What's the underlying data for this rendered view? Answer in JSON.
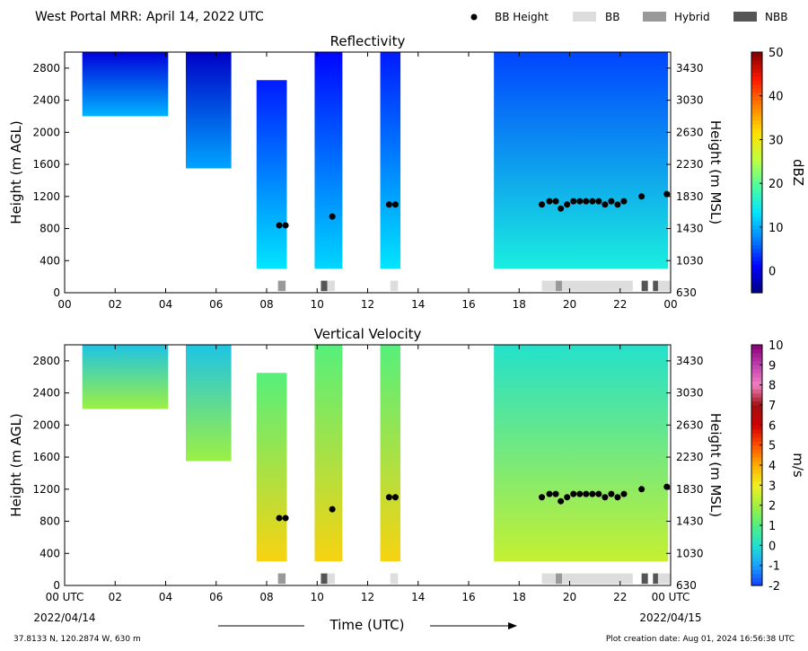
{
  "header": {
    "title": "West Portal MRR:  April 14, 2022 UTC",
    "legend": [
      {
        "label": "BB Height",
        "kind": "dot",
        "color": "#000000"
      },
      {
        "label": "BB",
        "kind": "box",
        "color": "#dddddd"
      },
      {
        "label": "Hybrid",
        "kind": "box",
        "color": "#999999"
      },
      {
        "label": "NBB",
        "kind": "box",
        "color": "#555555"
      }
    ]
  },
  "footer": {
    "location": "37.8133 N, 120.2874 W, 630 m",
    "creation": "Plot creation date: Aug 01, 2024 16:56:38 UTC",
    "xlabel": "Time (UTC)",
    "start_date": "2022/04/14",
    "end_date": "2022/04/15"
  },
  "chart_data": [
    {
      "type": "heatmap",
      "title": "Reflectivity",
      "ylabel": "Height (m AGL)",
      "y2label": "Height (m MSL)",
      "colorbar_label": "dBZ",
      "xlim": [
        0,
        24
      ],
      "ylim": [
        0,
        3000
      ],
      "xticks": [
        "00",
        "02",
        "04",
        "06",
        "08",
        "10",
        "12",
        "14",
        "16",
        "18",
        "20",
        "22",
        "00"
      ],
      "yticks": [
        0,
        400,
        800,
        1200,
        1600,
        2000,
        2400,
        2800
      ],
      "y2ticks": [
        630,
        1030,
        1430,
        1830,
        2230,
        2630,
        3030,
        3430
      ],
      "colorbar_range": [
        -5,
        50
      ],
      "colorbar_ticks": [
        0,
        10,
        20,
        30,
        40,
        50
      ],
      "colorbar_colors": [
        "#00007f",
        "#0000ff",
        "#0080ff",
        "#00e5ff",
        "#4dff9f",
        "#c0ff40",
        "#ffe000",
        "#ff8000",
        "#ff1800",
        "#7f0000"
      ],
      "precip_bands": [
        {
          "start": 0.7,
          "end": 4.1,
          "top": 3000,
          "bottom": 2200,
          "value": 6
        },
        {
          "start": 4.8,
          "end": 6.6,
          "top": 3000,
          "bottom": 1550,
          "value": 5
        },
        {
          "start": 7.6,
          "end": 8.8,
          "top": 2650,
          "bottom": 300,
          "value": 9
        },
        {
          "start": 9.9,
          "end": 11.0,
          "top": 3000,
          "bottom": 300,
          "value": 8
        },
        {
          "start": 12.5,
          "end": 13.3,
          "top": 3000,
          "bottom": 300,
          "value": 9
        },
        {
          "start": 17.0,
          "end": 23.9,
          "top": 3000,
          "bottom": 300,
          "value": 11
        }
      ],
      "bb_height": {
        "x": [
          8.5,
          8.75,
          10.6,
          12.85,
          13.1,
          18.9,
          19.2,
          19.45,
          19.65,
          19.9,
          20.15,
          20.4,
          20.65,
          20.9,
          21.15,
          21.4,
          21.65,
          21.9,
          22.15,
          22.85,
          23.85
        ],
        "y": [
          840,
          840,
          950,
          1100,
          1100,
          1100,
          1140,
          1140,
          1050,
          1100,
          1140,
          1140,
          1140,
          1140,
          1140,
          1100,
          1140,
          1100,
          1140,
          1200,
          1230
        ]
      },
      "bb_type_segments": [
        {
          "start": 8.45,
          "end": 8.75,
          "type": "Hybrid"
        },
        {
          "start": 10.15,
          "end": 10.4,
          "type": "NBB"
        },
        {
          "start": 10.4,
          "end": 10.7,
          "type": "BB"
        },
        {
          "start": 12.9,
          "end": 13.2,
          "type": "BB"
        },
        {
          "start": 18.9,
          "end": 19.45,
          "type": "BB"
        },
        {
          "start": 19.45,
          "end": 19.7,
          "type": "Hybrid"
        },
        {
          "start": 19.7,
          "end": 22.5,
          "type": "BB"
        },
        {
          "start": 22.85,
          "end": 23.1,
          "type": "NBB"
        },
        {
          "start": 23.3,
          "end": 23.5,
          "type": "NBB"
        },
        {
          "start": 23.5,
          "end": 24.0,
          "type": "BB"
        }
      ]
    },
    {
      "type": "heatmap",
      "title": "Vertical Velocity",
      "ylabel": "Height (m AGL)",
      "y2label": "Height (m MSL)",
      "colorbar_label": "m/s",
      "xlim": [
        0,
        24
      ],
      "ylim": [
        0,
        3000
      ],
      "xticks": [
        "00 UTC",
        "02",
        "04",
        "06",
        "08",
        "10",
        "12",
        "14",
        "16",
        "18",
        "20",
        "22",
        "00 UTC"
      ],
      "yticks": [
        0,
        400,
        800,
        1200,
        1600,
        2000,
        2400,
        2800
      ],
      "y2ticks": [
        630,
        1030,
        1430,
        1830,
        2230,
        2630,
        3030,
        3430
      ],
      "colorbar_range": [
        -2,
        10
      ],
      "colorbar_ticks": [
        -2,
        -1,
        0,
        1,
        2,
        3,
        4,
        5,
        6,
        7,
        8,
        9,
        10
      ],
      "colorbar_colors": [
        "#1040ff",
        "#1aa0ff",
        "#20e0d0",
        "#50f080",
        "#a0f040",
        "#f0f020",
        "#ffb000",
        "#ff5000",
        "#d00000",
        "#a01010",
        "#f080c0",
        "#c040b0",
        "#8a007a"
      ],
      "precip_bands": [
        {
          "start": 0.7,
          "end": 4.1,
          "top": 3000,
          "bottom": 2200,
          "value": 1
        },
        {
          "start": 4.8,
          "end": 6.6,
          "top": 3000,
          "bottom": 1550,
          "value": 1
        },
        {
          "start": 7.6,
          "end": 8.8,
          "top": 2650,
          "bottom": 300,
          "value": 2.5
        },
        {
          "start": 9.9,
          "end": 11.0,
          "top": 3000,
          "bottom": 300,
          "value": 2.5
        },
        {
          "start": 12.5,
          "end": 13.3,
          "top": 3000,
          "bottom": 300,
          "value": 2.5
        },
        {
          "start": 17.0,
          "end": 23.9,
          "top": 3000,
          "bottom": 300,
          "value": 1.5
        }
      ],
      "bb_height": {
        "x": [
          8.5,
          8.75,
          10.6,
          12.85,
          13.1,
          18.9,
          19.2,
          19.45,
          19.65,
          19.9,
          20.15,
          20.4,
          20.65,
          20.9,
          21.15,
          21.4,
          21.65,
          21.9,
          22.15,
          22.85,
          23.85
        ],
        "y": [
          840,
          840,
          950,
          1100,
          1100,
          1100,
          1140,
          1140,
          1050,
          1100,
          1140,
          1140,
          1140,
          1140,
          1140,
          1100,
          1140,
          1100,
          1140,
          1200,
          1230
        ]
      },
      "bb_type_segments": [
        {
          "start": 8.45,
          "end": 8.75,
          "type": "Hybrid"
        },
        {
          "start": 10.15,
          "end": 10.4,
          "type": "NBB"
        },
        {
          "start": 10.4,
          "end": 10.7,
          "type": "BB"
        },
        {
          "start": 12.9,
          "end": 13.2,
          "type": "BB"
        },
        {
          "start": 18.9,
          "end": 19.45,
          "type": "BB"
        },
        {
          "start": 19.45,
          "end": 19.7,
          "type": "Hybrid"
        },
        {
          "start": 19.7,
          "end": 22.5,
          "type": "BB"
        },
        {
          "start": 22.85,
          "end": 23.1,
          "type": "NBB"
        },
        {
          "start": 23.3,
          "end": 23.5,
          "type": "NBB"
        },
        {
          "start": 23.5,
          "end": 24.0,
          "type": "BB"
        }
      ]
    }
  ]
}
